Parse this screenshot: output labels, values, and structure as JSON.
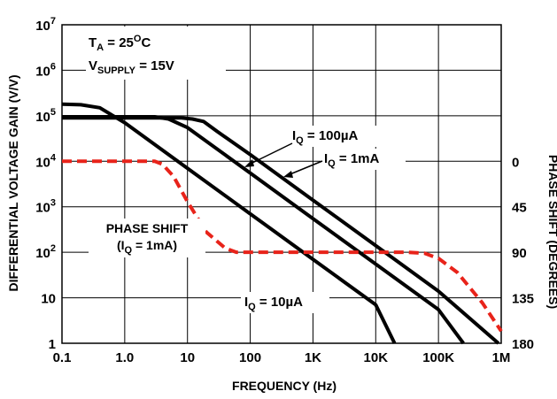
{
  "chart_data": {
    "type": "line",
    "xlabel": "FREQUENCY (Hz)",
    "ylabel": "DIFFERENTIAL VOLTAGE GAIN (V/V)",
    "y2label": "PHASE SHIFT (DEGREES)",
    "x_scale": "log",
    "y_scale": "log",
    "xlim": [
      0.1,
      1000000
    ],
    "ylim": [
      1,
      10000000
    ],
    "y2lim": [
      180,
      0
    ],
    "grid": true,
    "x_ticks": [
      {
        "value": 0.1,
        "label": "0.1"
      },
      {
        "value": 1,
        "label": "1.0"
      },
      {
        "value": 10,
        "label": "10"
      },
      {
        "value": 100,
        "label": "100"
      },
      {
        "value": 1000,
        "label": "1K"
      },
      {
        "value": 10000,
        "label": "10K"
      },
      {
        "value": 100000,
        "label": "100K"
      },
      {
        "value": 1000000,
        "label": "1M"
      }
    ],
    "y_ticks": [
      {
        "value": 1,
        "base": "1",
        "exp": ""
      },
      {
        "value": 10,
        "base": "10",
        "exp": ""
      },
      {
        "value": 100,
        "base": "10",
        "exp": "2"
      },
      {
        "value": 1000,
        "base": "10",
        "exp": "3"
      },
      {
        "value": 10000,
        "base": "10",
        "exp": "4"
      },
      {
        "value": 100000,
        "base": "10",
        "exp": "5"
      },
      {
        "value": 1000000,
        "base": "10",
        "exp": "6"
      },
      {
        "value": 10000000,
        "base": "10",
        "exp": "7"
      }
    ],
    "y2_ticks": [
      {
        "value": 0,
        "label": "0"
      },
      {
        "value": 45,
        "label": "45"
      },
      {
        "value": 90,
        "label": "90"
      },
      {
        "value": 135,
        "label": "135"
      },
      {
        "value": 180,
        "label": "180"
      }
    ],
    "conditions": {
      "ta": {
        "main": "T",
        "sub": "A",
        "rest": " = 25",
        "sup": "O",
        "tail": "C"
      },
      "vsupply": {
        "main": "V",
        "sub": "SUPPLY",
        "rest": " = 15V"
      }
    },
    "series": [
      {
        "key": "iq10ua",
        "label": {
          "main": "I",
          "sub": "Q",
          "rest": " = 10µA"
        },
        "points": [
          [
            0.1,
            180000
          ],
          [
            0.2,
            175000
          ],
          [
            0.4,
            150000
          ],
          [
            1,
            70000
          ],
          [
            10,
            7000
          ],
          [
            100,
            700
          ],
          [
            1000,
            70
          ],
          [
            10000,
            7
          ],
          [
            20000,
            1
          ]
        ]
      },
      {
        "key": "iq100ua",
        "label": {
          "main": "I",
          "sub": "Q",
          "rest": " = 100µA"
        },
        "points": [
          [
            0.1,
            95000
          ],
          [
            3,
            95000
          ],
          [
            5,
            85000
          ],
          [
            10,
            55000
          ],
          [
            100,
            5500
          ],
          [
            1000,
            550
          ],
          [
            10000,
            55
          ],
          [
            100000,
            5.5
          ],
          [
            250000,
            1
          ]
        ]
      },
      {
        "key": "iq1ma",
        "label": {
          "main": "I",
          "sub": "Q",
          "rest": " = 1mA"
        },
        "points": [
          [
            0.1,
            90000
          ],
          [
            1,
            90000
          ],
          [
            8,
            90000
          ],
          [
            12,
            85000
          ],
          [
            18,
            75000
          ],
          [
            30,
            45000
          ],
          [
            100,
            14000
          ],
          [
            1000,
            1400
          ],
          [
            10000,
            140
          ],
          [
            100000,
            14
          ],
          [
            900000,
            1
          ]
        ]
      },
      {
        "key": "phase",
        "label": {
          "line1": "PHASE SHIFT",
          "main": "(I",
          "sub": "Q",
          "rest": " = 1mA)"
        },
        "axis": "y2",
        "color": "#e8231a",
        "dashed": true,
        "points": [
          [
            0.1,
            0
          ],
          [
            1,
            0
          ],
          [
            3,
            0
          ],
          [
            4,
            3
          ],
          [
            6,
            15
          ],
          [
            10,
            40
          ],
          [
            20,
            70
          ],
          [
            40,
            86
          ],
          [
            60,
            90
          ],
          [
            1000,
            90
          ],
          [
            30000,
            90
          ],
          [
            60000,
            91
          ],
          [
            100000,
            96
          ],
          [
            200000,
            110
          ],
          [
            500000,
            140
          ],
          [
            1000000,
            168
          ]
        ]
      }
    ]
  }
}
